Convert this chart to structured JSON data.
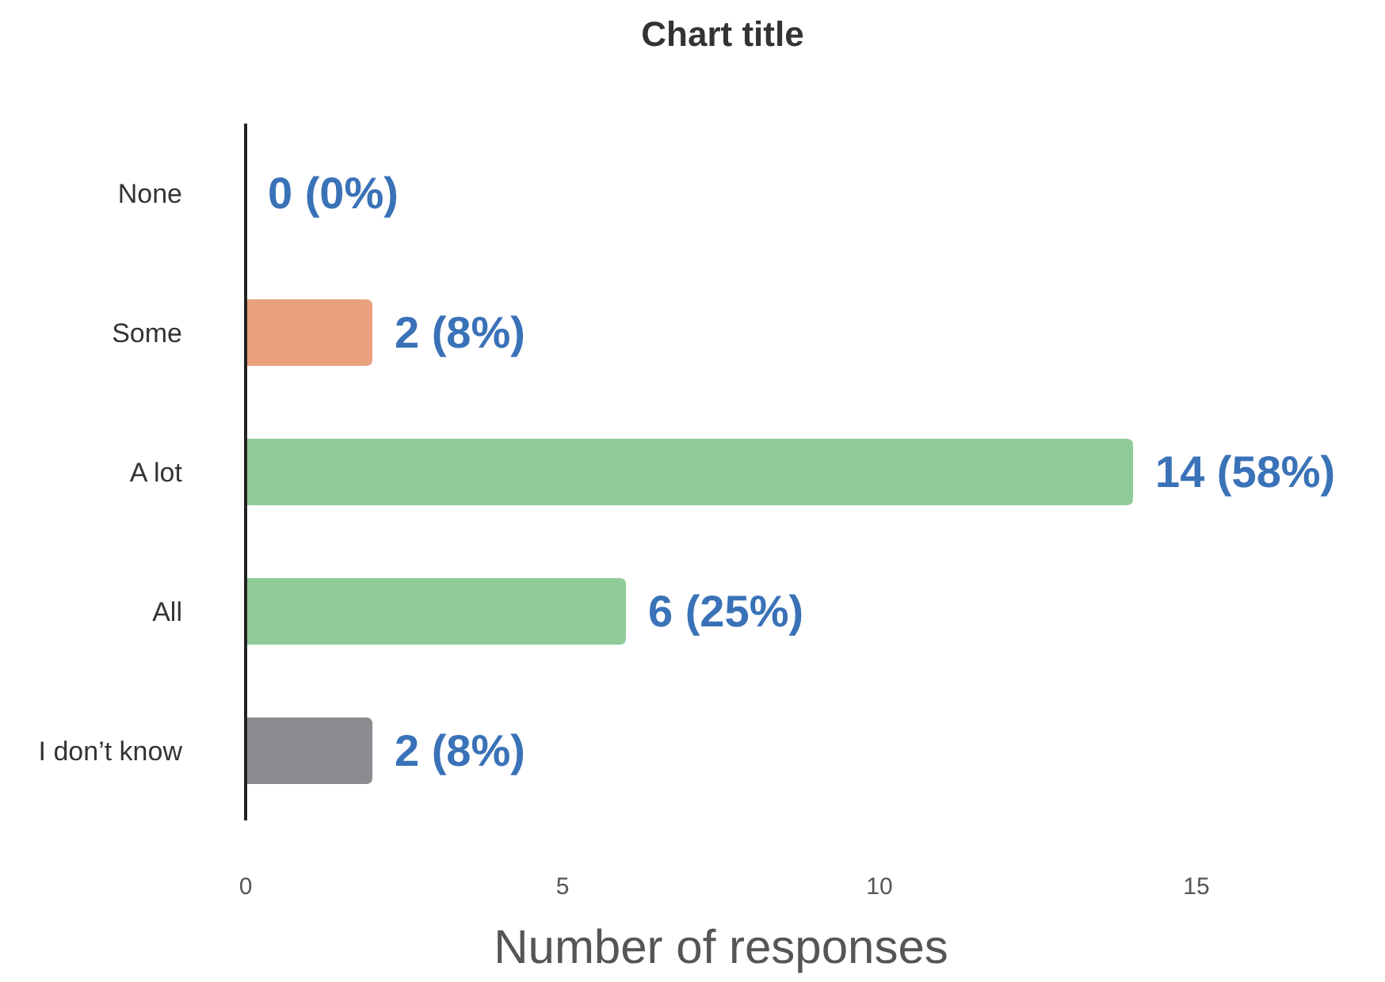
{
  "chart_data": {
    "type": "bar",
    "orientation": "horizontal",
    "title": "Chart title",
    "xlabel": "Number of responses",
    "categories": [
      "None",
      "Some",
      "A lot",
      "All",
      "I don’t know"
    ],
    "values": [
      0,
      2,
      14,
      6,
      2
    ],
    "colors": [
      "#8fcb98",
      "#e9a07e",
      "#8fcb98",
      "#8fcb98",
      "#8b8c90"
    ],
    "value_labels": [
      "0 (0%)",
      "2 (8%)",
      "14 (58%)",
      "6 (25%)",
      "2 (8%)"
    ],
    "xlim": [
      0,
      15
    ],
    "xticks": [
      0,
      5,
      10,
      15
    ],
    "grid": false
  }
}
